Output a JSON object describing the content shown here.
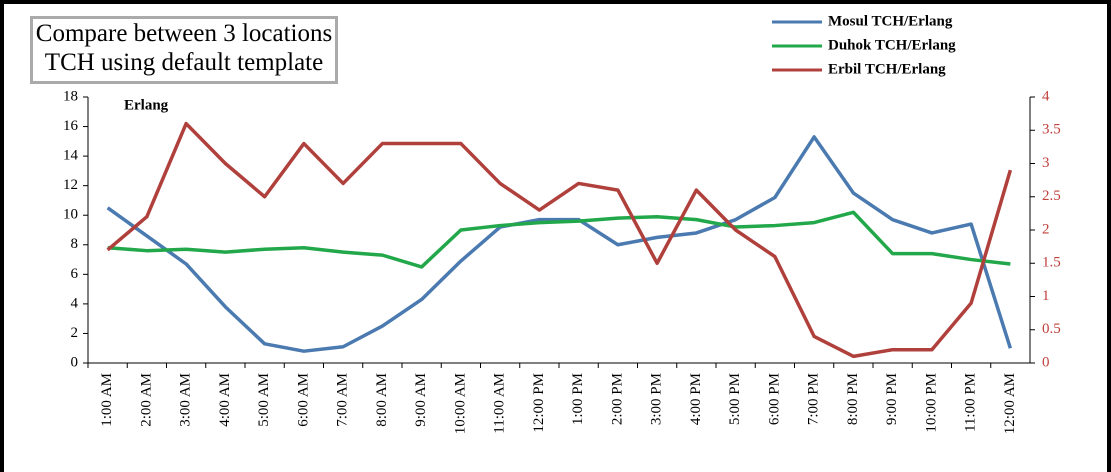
{
  "chart_data": {
    "type": "line",
    "title": "Compare between 3 locations TCH using default template",
    "ylabel": "Erlang",
    "categories": [
      "1:00 AM",
      "2:00 AM",
      "3:00 AM",
      "4:00 AM",
      "5:00 AM",
      "6:00 AM",
      "7:00 AM",
      "8:00 AM",
      "9:00 AM",
      "10:00 AM",
      "11:00 AM",
      "12:00 PM",
      "1:00 PM",
      "2:00 PM",
      "3:00 PM",
      "4:00 PM",
      "5:00 PM",
      "6:00 PM",
      "7:00 PM",
      "8:00 PM",
      "9:00 PM",
      "10:00 PM",
      "11:00 PM",
      "12:00 AM"
    ],
    "series": [
      {
        "name": "Mosul TCH/Erlang",
        "color": "#4a7ab0",
        "values": [
          10.5,
          8.6,
          6.7,
          3.8,
          1.3,
          0.8,
          1.1,
          2.5,
          4.3,
          6.9,
          9.2,
          9.7,
          9.7,
          8.0,
          8.5,
          8.8,
          9.7,
          11.2,
          15.3,
          11.5,
          9.7,
          8.8,
          9.4,
          1.0
        ]
      },
      {
        "name": "Duhok TCH/Erlang",
        "color": "#22a84a",
        "values": [
          7.8,
          7.6,
          7.7,
          7.5,
          7.7,
          7.8,
          7.5,
          7.3,
          6.5,
          9.0,
          9.3,
          9.5,
          9.6,
          9.8,
          9.9,
          9.7,
          9.2,
          9.3,
          9.5,
          10.2,
          7.4,
          7.4,
          7.0,
          6.7
        ]
      },
      {
        "name": "Erbil TCH/Erlang",
        "color": "#b0403c",
        "axis": "y2",
        "values": [
          1.7,
          2.2,
          3.6,
          3.0,
          2.5,
          3.3,
          2.7,
          3.3,
          3.3,
          3.3,
          2.7,
          2.3,
          2.7,
          2.6,
          1.5,
          2.6,
          2.0,
          1.6,
          0.4,
          0.1,
          0.2,
          0.2,
          0.9,
          2.9
        ]
      }
    ],
    "ylim": [
      0,
      18
    ],
    "yticks": [
      0,
      2,
      4,
      6,
      8,
      10,
      12,
      14,
      16,
      18
    ],
    "y2lim": [
      0,
      4
    ],
    "y2ticks": [
      0,
      0.5,
      1,
      1.5,
      2,
      2.5,
      3,
      3.5,
      4
    ],
    "y2color": "#c0403c"
  }
}
